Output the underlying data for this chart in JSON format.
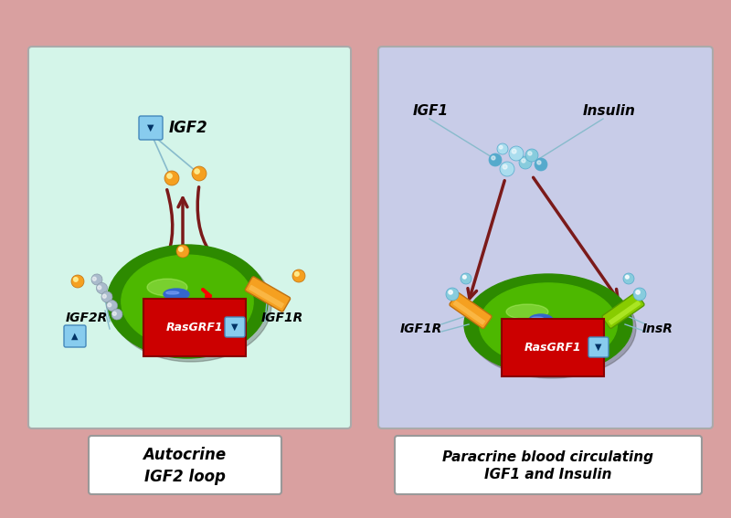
{
  "bg_color": "#d9a0a0",
  "left_panel_bg": "#d4f5e9",
  "right_panel_bg": "#c8cce8",
  "left_panel_title": "Autocrine\nIGF2 loop",
  "right_panel_title": "Paracrine blood circulating\nIGF1 and Insulin",
  "arrow_color": "#7b1a1a",
  "cell_color_outer": "#2d8a00",
  "cell_color_inner": "#4db800",
  "rasgrf1_bg": "#cc0000",
  "orange_color": "#f5a020",
  "green_receptor_color": "#88cc00",
  "blue_ligand_color": "#88ccdd",
  "cyan_ligand_color": "#aaddee",
  "igf2_label": "IGF2",
  "igf2r_label": "IGF2R",
  "igf1r_label": "IGF1R",
  "igf1_label": "IGF1",
  "insulin_label": "Insulin",
  "insr_label": "InsR",
  "line_color_light": "#88bbcc"
}
